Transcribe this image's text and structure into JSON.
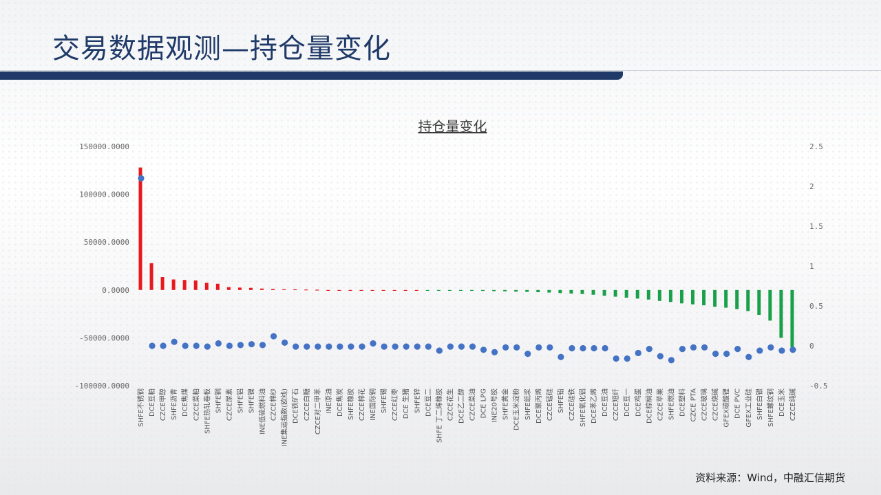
{
  "page_title": "交易数据观测—持仓量变化",
  "source": "资料来源：Wind，中融汇信期货",
  "colors": {
    "title": "#1f3a68",
    "positive_bar": "#e8191d",
    "negative_bar": "#1aa04a",
    "dot": "#4472c4"
  },
  "chart_data": {
    "type": "bar",
    "title": "持仓量变化",
    "y_left_ticks": [
      "150000.0000",
      "100000.0000",
      "50000.0000",
      "0.0000",
      "-50000.0000",
      "-100000.0000"
    ],
    "y_left_lim": [
      -100000,
      150000
    ],
    "y_right_ticks": [
      "2.5",
      "2",
      "1.5",
      "1",
      "0.5",
      "0",
      "-0.5"
    ],
    "y_right_lim": [
      -0.5,
      2.5
    ],
    "categories": [
      "SHFE不锈钢",
      "DCE豆粕",
      "CZCE甲醇",
      "SHFE沥青",
      "DCE焦煤",
      "CZCE菜粕",
      "SHFE热轧卷板",
      "SHFE铜",
      "CZCE尿素",
      "SHFE铝",
      "SHFE镍",
      "INE低硫燃料油",
      "CZCE棉纱",
      "INE集运指数(欧线)",
      "DCE铁矿石",
      "CZCE白糖",
      "CZCE对二甲苯",
      "INE原油",
      "DCE焦炭",
      "SHFE橡胶",
      "CZCE棉花",
      "INE国际铜",
      "SHFE锡",
      "CZCE红枣",
      "DCE 生猪",
      "SHFE锌",
      "DCE豆二",
      "SHFE 丁二烯橡胶",
      "CZCE花生",
      "DCE乙二醇",
      "CZCE菜油",
      "DCE LPG",
      "INE20号胶",
      "SHFE黄金",
      "DCE玉米淀粉",
      "SHFE纸浆",
      "DCE聚丙烯",
      "CZCE锰硅",
      "SHFE铅",
      "CZCE硅铁",
      "SHFE氧化铝",
      "DCE苯乙烯",
      "DCE豆油",
      "CZCE短纤",
      "DCE豆一",
      "DCE鸡蛋",
      "DCE棕榈油",
      "CZCE苹果",
      "SHFE燃油",
      "DCE塑料",
      "CZCE PTA",
      "CZCE玻璃",
      "CZCE烧碱",
      "GFEX碳酸锂",
      "DCE PVC",
      "GFEX工业硅",
      "SHFE白银",
      "SHFE螺纹钢",
      "DCE玉米",
      "CZCE纯碱"
    ],
    "series": [
      {
        "name": "",
        "axis": "left",
        "kind": "bar",
        "values": [
          128000,
          28000,
          13500,
          11000,
          10500,
          10000,
          7500,
          6500,
          3000,
          2500,
          2200,
          1500,
          1200,
          900,
          700,
          500,
          300,
          0,
          0,
          0,
          0,
          0,
          0,
          0,
          0,
          0,
          -500,
          -600,
          -700,
          -800,
          -900,
          -1000,
          -1200,
          -1400,
          -1700,
          -2000,
          -2300,
          -2700,
          -3200,
          -3700,
          -4200,
          -5000,
          -6000,
          -7000,
          -8000,
          -9000,
          -10000,
          -11500,
          -12500,
          -14000,
          -15000,
          -16000,
          -17500,
          -18500,
          -20000,
          -22000,
          -26000,
          -32000,
          -50000,
          -60000
        ]
      },
      {
        "name": "",
        "axis": "right",
        "kind": "dot",
        "values": [
          2.1,
          0,
          0,
          0.05,
          0,
          0,
          -0.01,
          0.03,
          0,
          0.01,
          0.02,
          0.01,
          0.12,
          0.04,
          -0.01,
          -0.01,
          -0.01,
          -0.01,
          -0.01,
          -0.01,
          -0.01,
          0.03,
          -0.01,
          -0.01,
          -0.01,
          -0.01,
          -0.01,
          -0.06,
          -0.01,
          -0.01,
          -0.01,
          -0.05,
          -0.08,
          -0.02,
          -0.02,
          -0.1,
          -0.02,
          -0.02,
          -0.14,
          -0.03,
          -0.03,
          -0.03,
          -0.03,
          -0.16,
          -0.16,
          -0.09,
          -0.04,
          -0.13,
          -0.18,
          -0.04,
          -0.02,
          -0.02,
          -0.1,
          -0.1,
          -0.04,
          -0.14,
          -0.06,
          -0.02,
          -0.06,
          -0.05
        ]
      }
    ]
  }
}
